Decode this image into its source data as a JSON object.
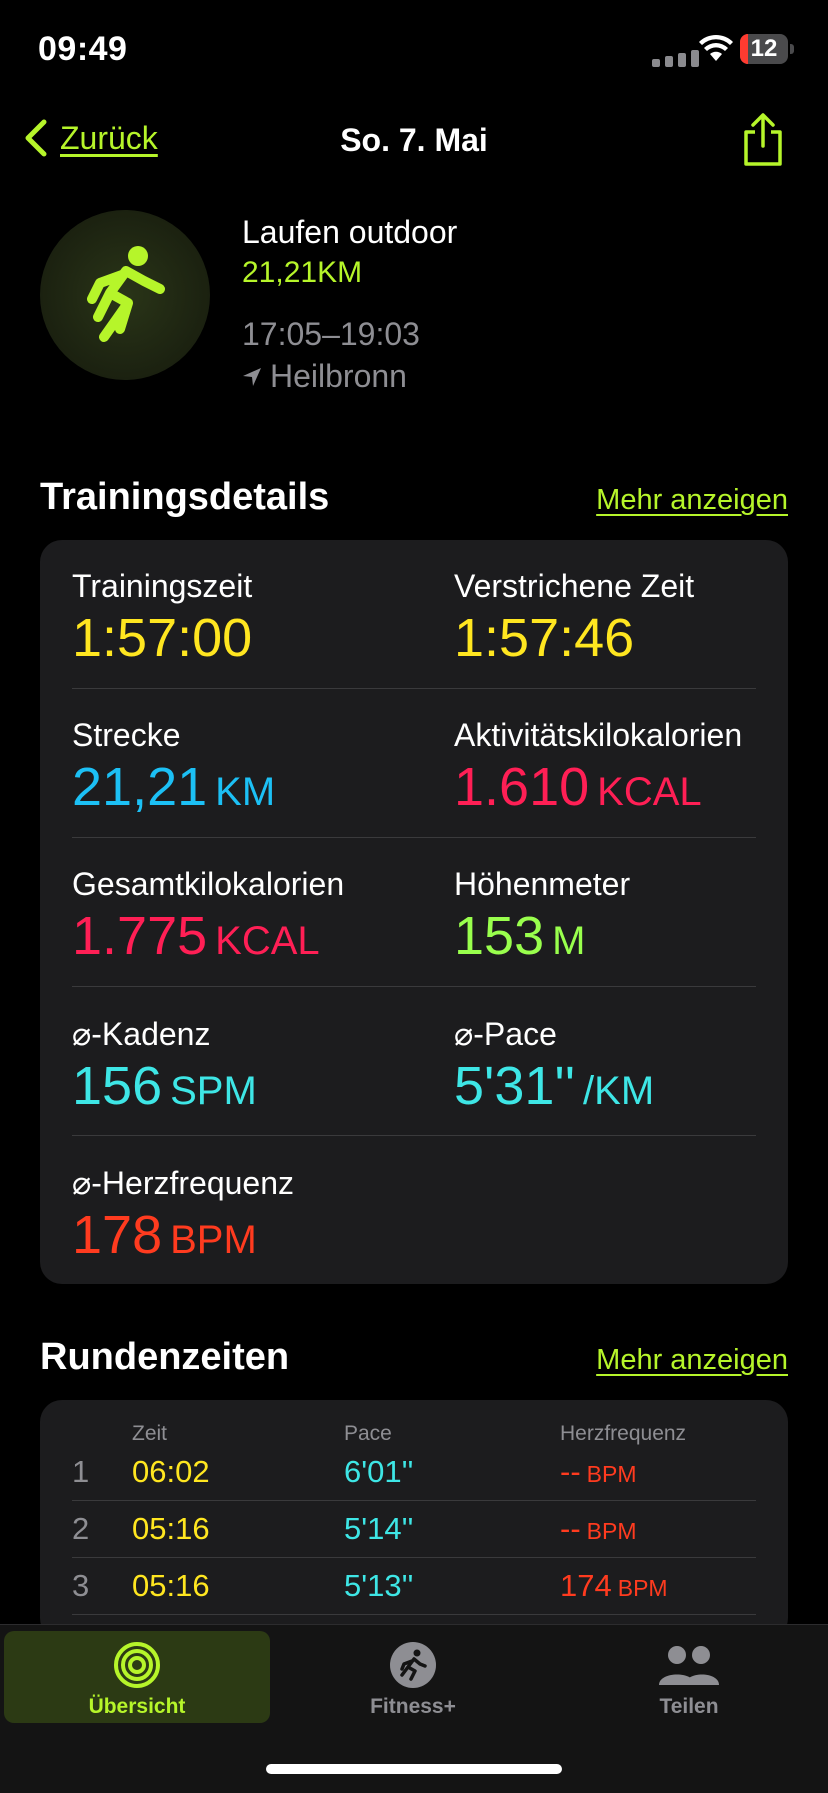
{
  "status_bar": {
    "time": "09:49",
    "battery": "12"
  },
  "nav": {
    "back_label": "Zurück",
    "title": "So. 7. Mai"
  },
  "workout": {
    "type": "Laufen outdoor",
    "distance": "21,21KM",
    "time_range": "17:05–19:03",
    "location": "Heilbronn"
  },
  "details": {
    "title": "Trainingsdetails",
    "more": "Mehr anzeigen",
    "items": [
      {
        "label": "Trainingszeit",
        "value": "1:57:00",
        "unit": ""
      },
      {
        "label": "Verstrichene Zeit",
        "value": "1:57:46",
        "unit": ""
      },
      {
        "label": "Strecke",
        "value": "21,21",
        "unit": "KM"
      },
      {
        "label": "Aktivitätskilokalorien",
        "value": "1.610",
        "unit": "KCAL"
      },
      {
        "label": "Gesamtkilokalorien",
        "value": "1.775",
        "unit": "KCAL"
      },
      {
        "label": "Höhenmeter",
        "value": "153",
        "unit": "M"
      },
      {
        "label": "⌀-Kadenz",
        "value": "156",
        "unit": "SPM"
      },
      {
        "label": "⌀-Pace",
        "value": "5'31''",
        "unit": "/KM"
      },
      {
        "label": "⌀-Herzfrequenz",
        "value": "178",
        "unit": "BPM"
      }
    ]
  },
  "laps": {
    "title": "Rundenzeiten",
    "more": "Mehr anzeigen",
    "headers": {
      "time": "Zeit",
      "pace": "Pace",
      "heart_rate": "Herzfrequenz"
    },
    "rows": [
      {
        "n": "1",
        "time": "06:02",
        "pace": "6'01''",
        "hr": "--",
        "hr_unit": "BPM"
      },
      {
        "n": "2",
        "time": "05:16",
        "pace": "5'14''",
        "hr": "--",
        "hr_unit": "BPM"
      },
      {
        "n": "3",
        "time": "05:16",
        "pace": "5'13''",
        "hr": "174",
        "hr_unit": "BPM"
      }
    ]
  },
  "tabs": [
    {
      "label": "Übersicht",
      "icon": "activity-rings-icon",
      "active": true
    },
    {
      "label": "Fitness+",
      "icon": "fitness-plus-icon",
      "active": false
    },
    {
      "label": "Teilen",
      "icon": "people-icon",
      "active": false
    }
  ],
  "colors": {
    "accent": "#b6f52a",
    "time": "#ffe620",
    "distance": "#1cc0f5",
    "calories": "#ff1f55",
    "elevation": "#99ff4d",
    "cadence_pace": "#3ee6e6",
    "heart_rate": "#ff3b1f"
  }
}
